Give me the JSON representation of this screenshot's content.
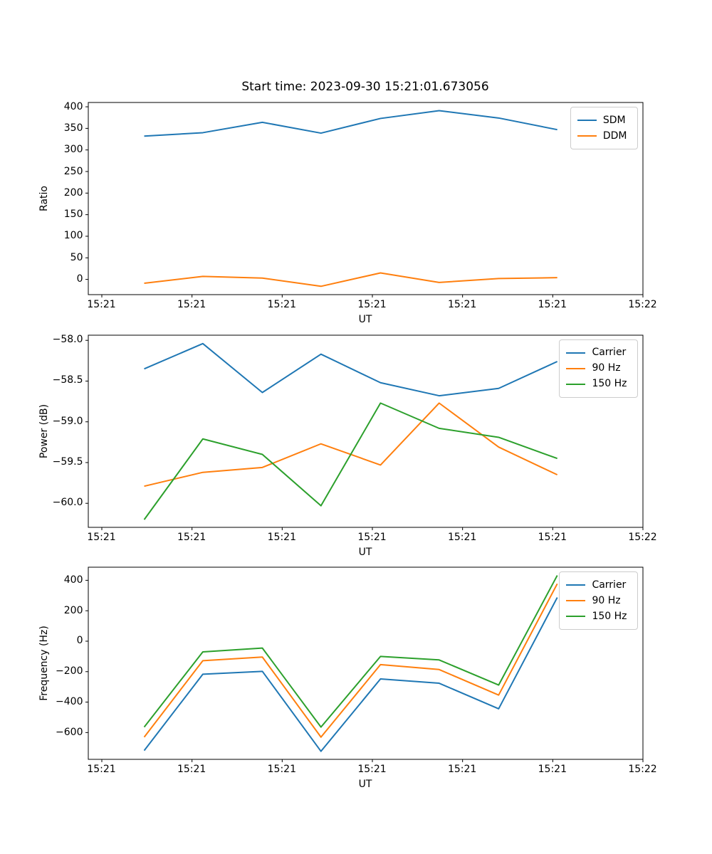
{
  "title": "Start time: 2023-09-30 15:21:01.673056",
  "colors": {
    "blue": "#1f77b4",
    "orange": "#ff7f0e",
    "green": "#2ca02c"
  },
  "chart_data": [
    {
      "type": "line",
      "ylabel": "Ratio",
      "xlabel": "UT",
      "x_seconds": [
        4.7,
        11.2,
        17.8,
        24.3,
        30.9,
        37.4,
        44.0,
        50.5
      ],
      "xlim_seconds": [
        -1.5,
        60
      ],
      "xtick_seconds": [
        0,
        10,
        20,
        30,
        40,
        50,
        60
      ],
      "xtick_labels": [
        "15:21",
        "15:21",
        "15:21",
        "15:21",
        "15:21",
        "15:21",
        "15:22"
      ],
      "ylim": [
        -35.3,
        410
      ],
      "yticks": [
        0,
        50,
        100,
        150,
        200,
        250,
        300,
        350,
        400
      ],
      "ytick_labels": [
        "0",
        "50",
        "100",
        "150",
        "200",
        "250",
        "300",
        "350",
        "400"
      ],
      "grid": false,
      "legend_position": "upper right",
      "series": [
        {
          "name": "SDM",
          "color": "#1f77b4",
          "values": [
            332,
            340,
            364,
            339,
            373,
            391,
            374,
            347
          ]
        },
        {
          "name": "DDM",
          "color": "#ff7f0e",
          "values": [
            -9,
            7,
            3,
            -16,
            15,
            -7,
            2,
            4
          ]
        }
      ]
    },
    {
      "type": "line",
      "ylabel": "Power (dB)",
      "xlabel": "UT",
      "x_seconds": [
        4.7,
        11.2,
        17.8,
        24.3,
        30.9,
        37.4,
        44.0,
        50.5
      ],
      "xlim_seconds": [
        -1.5,
        60
      ],
      "xtick_seconds": [
        0,
        10,
        20,
        30,
        40,
        50,
        60
      ],
      "xtick_labels": [
        "15:21",
        "15:21",
        "15:21",
        "15:21",
        "15:21",
        "15:21",
        "15:22"
      ],
      "ylim": [
        -60.295,
        -57.937
      ],
      "yticks": [
        -58.0,
        -58.5,
        -59.0,
        -59.5,
        -60.0
      ],
      "ytick_labels": [
        "−58.0",
        "−58.5",
        "−59.0",
        "−59.5",
        "−60.0"
      ],
      "grid": false,
      "legend_position": "upper right",
      "series": [
        {
          "name": "Carrier",
          "color": "#1f77b4",
          "values": [
            -58.35,
            -58.04,
            -58.64,
            -58.17,
            -58.52,
            -58.68,
            -58.59,
            -58.26
          ]
        },
        {
          "name": "90 Hz",
          "color": "#ff7f0e",
          "values": [
            -59.79,
            -59.62,
            -59.56,
            -59.27,
            -59.53,
            -58.77,
            -59.31,
            -59.65
          ]
        },
        {
          "name": "150 Hz",
          "color": "#2ca02c",
          "values": [
            -60.2,
            -59.21,
            -59.4,
            -60.03,
            -58.77,
            -59.08,
            -59.19,
            -59.45
          ]
        }
      ]
    },
    {
      "type": "line",
      "ylabel": "Frequency (Hz)",
      "xlabel": "UT",
      "x_seconds": [
        4.7,
        11.2,
        17.8,
        24.3,
        30.9,
        37.4,
        44.0,
        50.5
      ],
      "xlim_seconds": [
        -1.5,
        60
      ],
      "xtick_seconds": [
        0,
        10,
        20,
        30,
        40,
        50,
        60
      ],
      "xtick_labels": [
        "15:21",
        "15:21",
        "15:21",
        "15:21",
        "15:21",
        "15:21",
        "15:22"
      ],
      "ylim": [
        -776,
        486
      ],
      "yticks": [
        400,
        200,
        0,
        -200,
        -400,
        -600
      ],
      "ytick_labels": [
        "400",
        "200",
        "0",
        "−200",
        "−400",
        "−600"
      ],
      "grid": false,
      "legend_position": "upper right",
      "series": [
        {
          "name": "Carrier",
          "color": "#1f77b4",
          "values": [
            -718,
            -217,
            -198,
            -723,
            -248,
            -276,
            -444,
            287
          ]
        },
        {
          "name": "90 Hz",
          "color": "#ff7f0e",
          "values": [
            -630,
            -128,
            -104,
            -630,
            -154,
            -186,
            -354,
            377
          ]
        },
        {
          "name": "150 Hz",
          "color": "#2ca02c",
          "values": [
            -564,
            -70,
            -45,
            -564,
            -100,
            -123,
            -288,
            432
          ]
        }
      ]
    }
  ]
}
